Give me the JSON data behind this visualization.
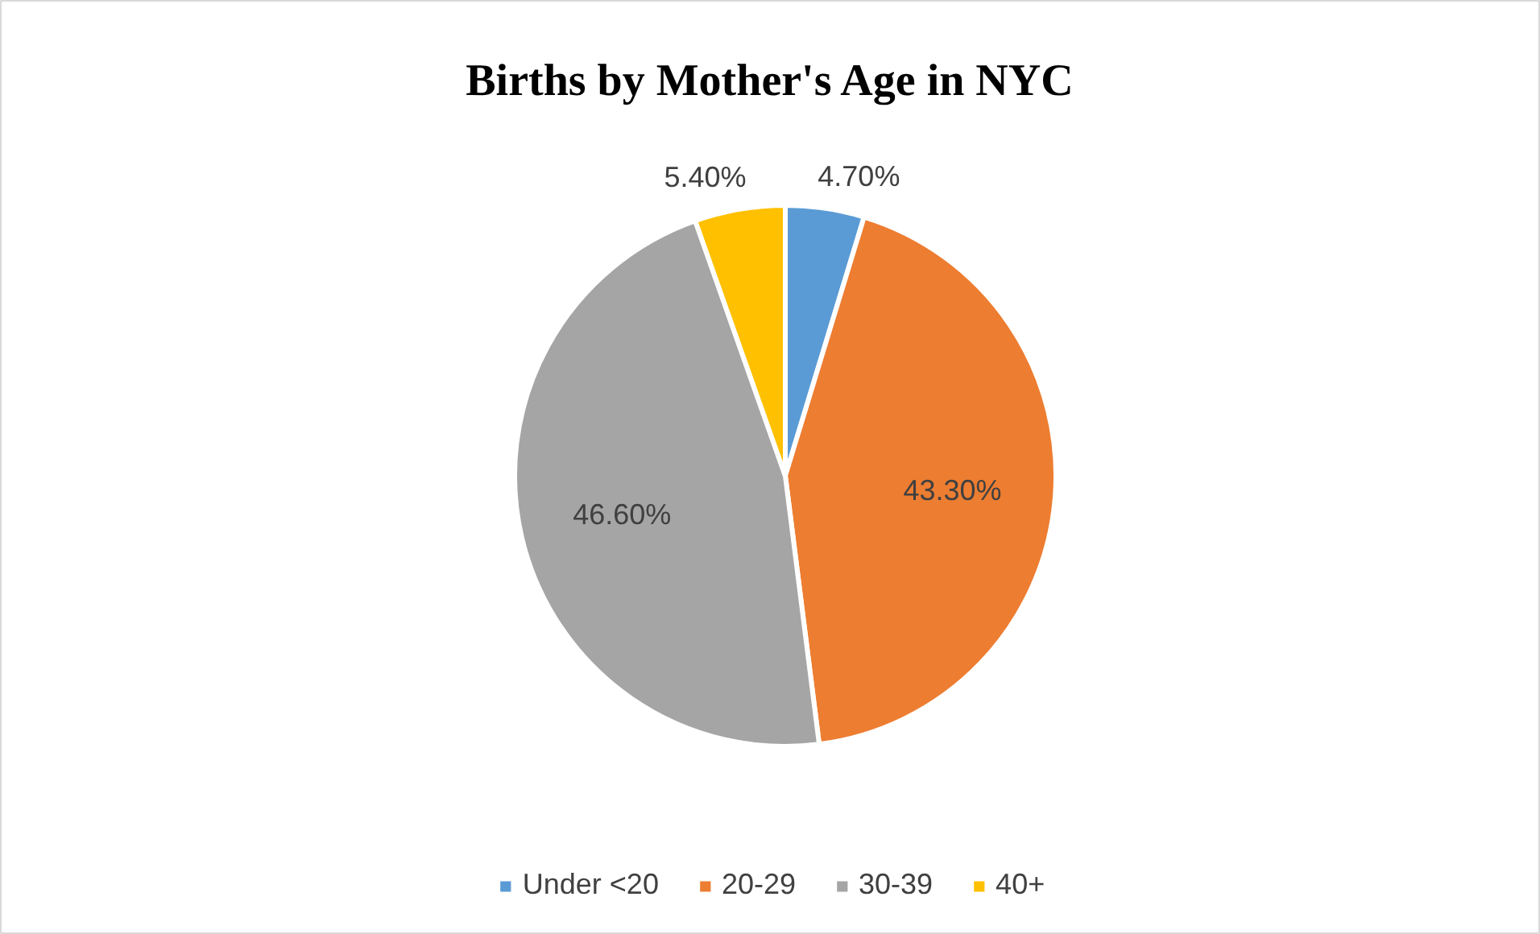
{
  "chart_data": {
    "type": "pie",
    "title": "Births by Mother's Age in NYC",
    "categories": [
      "Under <20",
      "20-29",
      "30-39",
      "40+"
    ],
    "values": [
      4.7,
      43.3,
      46.6,
      5.4
    ],
    "colors": [
      "#5b9bd5",
      "#ed7d31",
      "#a5a5a5",
      "#ffc000"
    ],
    "value_labels": [
      "4.70%",
      "43.30%",
      "46.60%",
      "5.40%"
    ],
    "legend": "bottom"
  }
}
